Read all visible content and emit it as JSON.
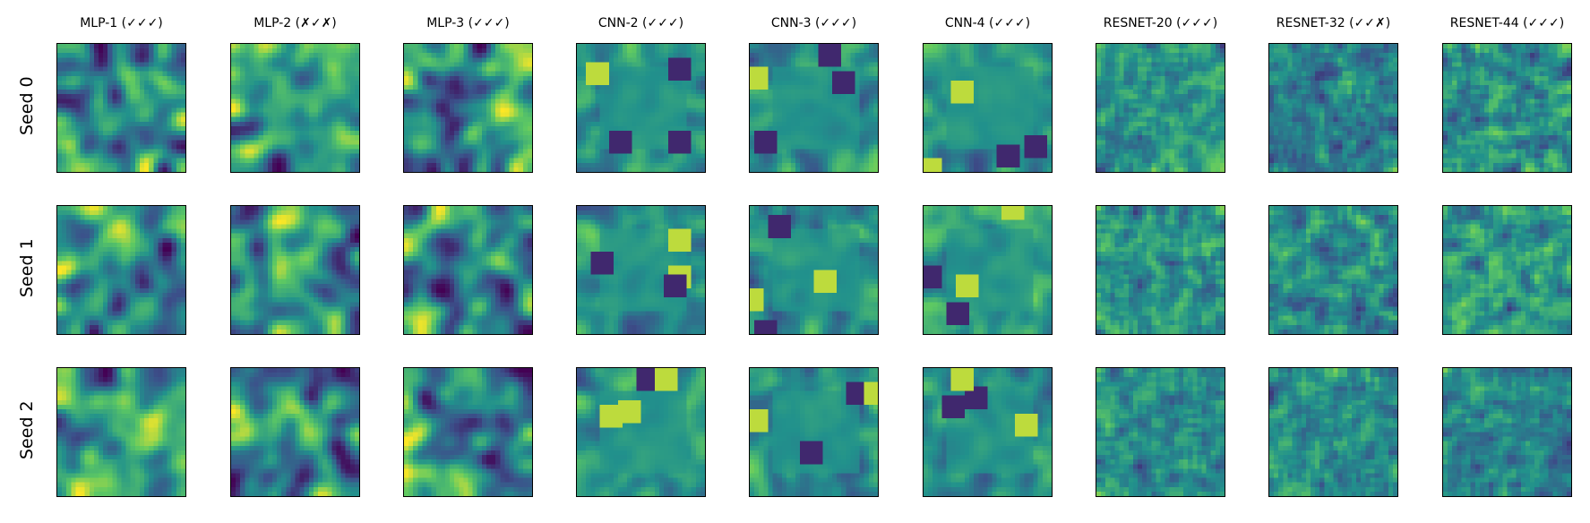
{
  "columns": [
    {
      "label": "MLP-1 (✓✓✓)",
      "style": "mlp"
    },
    {
      "label": "MLP-2 (✗✓✗)",
      "style": "mlp"
    },
    {
      "label": "MLP-3 (✓✓✓)",
      "style": "mlp"
    },
    {
      "label": "CNN-2 (✓✓✓)",
      "style": "cnn"
    },
    {
      "label": "CNN-3 (✓✓✓)",
      "style": "cnn"
    },
    {
      "label": "CNN-4 (✓✓✓)",
      "style": "cnn"
    },
    {
      "label": "RESNET-20 (✓✓✓)",
      "style": "resnet"
    },
    {
      "label": "RESNET-32 (✓✓✗)",
      "style": "resnet"
    },
    {
      "label": "RESNET-44 (✓✓✓)",
      "style": "resnet"
    }
  ],
  "rows": [
    "Seed 0",
    "Seed 1",
    "Seed 2"
  ],
  "colormap": "viridis",
  "colormap_stops": [
    "#440154",
    "#3b528b",
    "#21918c",
    "#5ec962",
    "#fde725"
  ]
}
